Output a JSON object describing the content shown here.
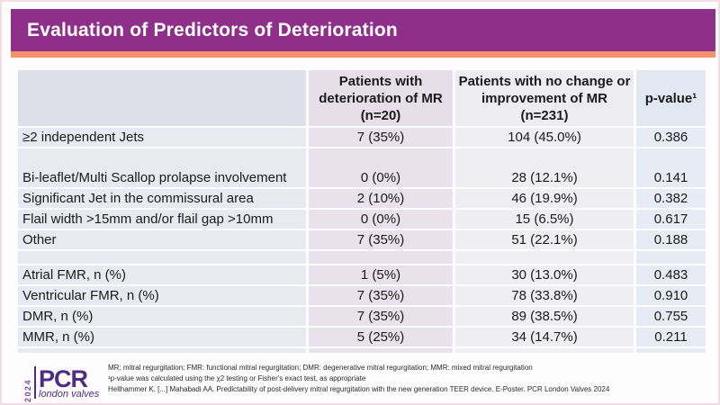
{
  "colors": {
    "header_purple": "#8E2F8A",
    "accent_orange": "#F6916D",
    "logo_purple": "#4F2C82"
  },
  "header": {
    "title": "Evaluation of Predictors of Deterioration"
  },
  "table": {
    "columns": [
      {
        "label": ""
      },
      {
        "label": "Patients with deterioration of MR (n=20)"
      },
      {
        "label": "Patients with no change or improvement of MR (n=231)"
      },
      {
        "label": "p-value¹"
      }
    ],
    "rows": [
      {
        "label": "≥2 independent Jets",
        "deterioration": "7 (35%)",
        "no_change": "104 (45.0%)",
        "p_value": "0.386"
      },
      {
        "label": "Bi-leaflet/Multi Scallop prolapse involvement",
        "deterioration": "0 (0%)",
        "no_change": "28 (12.1%)",
        "p_value": "0.141"
      },
      {
        "label": "Significant Jet in the commissural area",
        "deterioration": "2 (10%)",
        "no_change": "46 (19.9%)",
        "p_value": "0.382"
      },
      {
        "label": "Flail width >15mm and/or flail gap >10mm",
        "deterioration": "0 (0%)",
        "no_change": "15 (6.5%)",
        "p_value": "0.617"
      },
      {
        "label": "Other",
        "deterioration": "7 (35%)",
        "no_change": "51 (22.1%)",
        "p_value": "0.188"
      },
      {
        "label": "Atrial FMR, n (%)",
        "deterioration": "1 (5%)",
        "no_change": "30 (13.0%)",
        "p_value": "0.483"
      },
      {
        "label": "Ventricular FMR, n (%)",
        "deterioration": "7 (35%)",
        "no_change": "78 (33.8%)",
        "p_value": "0.910"
      },
      {
        "label": "DMR, n (%)",
        "deterioration": "7 (35%)",
        "no_change": "89 (38.5%)",
        "p_value": "0.755"
      },
      {
        "label": "MMR, n (%)",
        "deterioration": "5 (25%)",
        "no_change": "34 (14.7%)",
        "p_value": "0.211"
      }
    ]
  },
  "footnotes": {
    "abbreviations": "MR: mitral regurgitation; FMR: functional mitral regurgitation; DMR: degenerative mitral regurgitation; MMR: mixed mitral regurgitation",
    "pvalue_note": "¹p-value was calculated using the χ2 testing or Fisher's exact test, as appropriate",
    "citation": "Hellhammer K. [...] Mahabadi AA. Predictability of post-delivery mitral regurgitation with the new generation TEER device. E-Poster. PCR London Valves 2024"
  },
  "logo": {
    "year": "2024",
    "brand": "PCR",
    "tagline": "london valves"
  }
}
